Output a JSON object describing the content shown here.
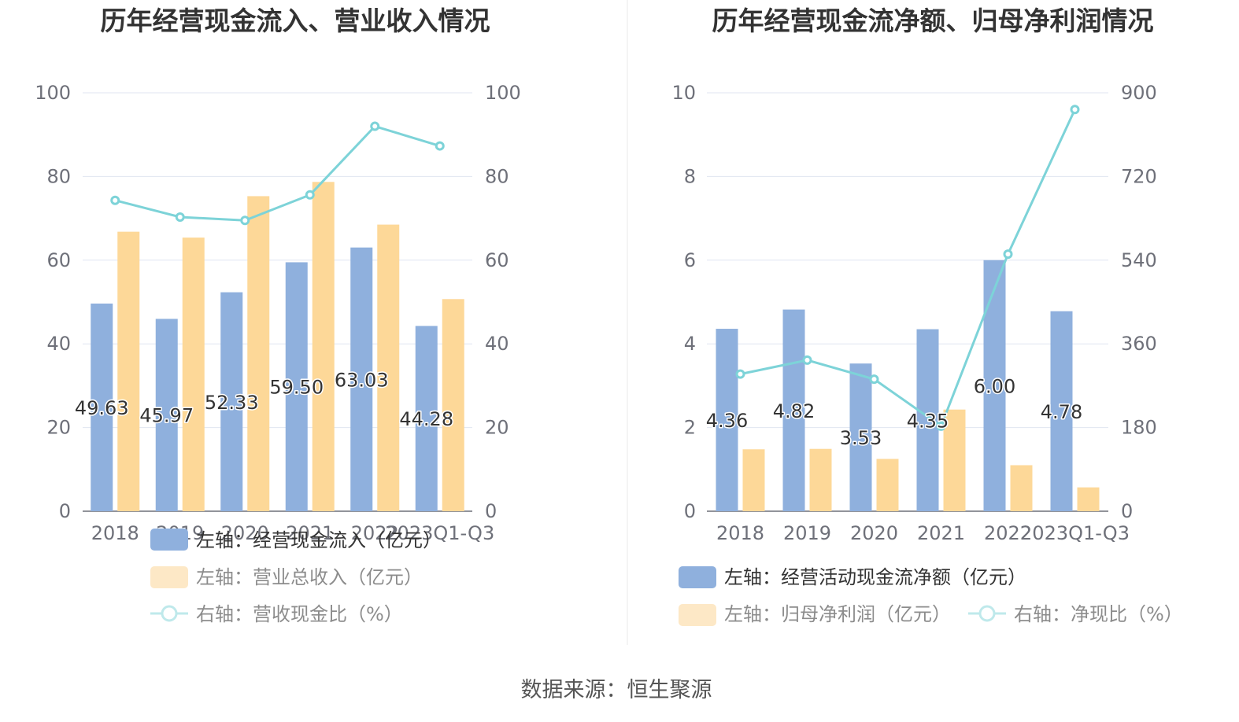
{
  "source": "数据来源：恒生聚源",
  "colors": {
    "blue": "#8fb0dd",
    "orange": "#fdd898",
    "orange_legend": "#fde8c6",
    "line": "#7dd3d8",
    "grid": "#e0e6f1",
    "axis": "#6e7079"
  },
  "chart_data": [
    {
      "type": "bar",
      "title": "历年经营现金流入、营业收入情况",
      "categories": [
        "2018",
        "2019",
        "2020",
        "2021",
        "2022",
        "2023Q1-Q3"
      ],
      "left_axis": {
        "ylim": [
          0,
          100
        ],
        "ticks": [
          "0",
          "20",
          "40",
          "60",
          "80",
          "100"
        ]
      },
      "right_axis": {
        "ylim": [
          0,
          100
        ],
        "ticks": [
          "0",
          "20",
          "40",
          "60",
          "80",
          "100"
        ]
      },
      "series": [
        {
          "name": "左轴：经营现金流入（亿元）",
          "type": "bar",
          "axis": "left",
          "values": [
            49.63,
            45.97,
            52.33,
            59.5,
            63.03,
            44.28
          ],
          "labels": [
            "49.63",
            "45.97",
            "52.33",
            "59.50",
            "63.03",
            "44.28"
          ]
        },
        {
          "name": "左轴：营业总收入（亿元）",
          "type": "bar",
          "axis": "left",
          "values": [
            66.8,
            65.4,
            75.3,
            78.7,
            68.5,
            50.7
          ]
        },
        {
          "name": "右轴：营收现金比（%）",
          "type": "line",
          "axis": "right",
          "values": [
            74.3,
            70.3,
            69.5,
            75.6,
            92.0,
            87.3
          ]
        }
      ]
    },
    {
      "type": "bar",
      "title": "历年经营现金流净额、归母净利润情况",
      "categories": [
        "2018",
        "2019",
        "2020",
        "2021",
        "2022",
        "2023Q1-Q3"
      ],
      "left_axis": {
        "ylim": [
          0,
          10
        ],
        "ticks": [
          "0",
          "2",
          "4",
          "6",
          "8",
          "10"
        ]
      },
      "right_axis": {
        "ylim": [
          0,
          900
        ],
        "ticks": [
          "0",
          "180",
          "360",
          "540",
          "720",
          "900"
        ]
      },
      "series": [
        {
          "name": "左轴：经营活动现金流净额（亿元）",
          "type": "bar",
          "axis": "left",
          "values": [
            4.36,
            4.82,
            3.53,
            4.35,
            6.0,
            4.78
          ],
          "labels": [
            "4.36",
            "4.82",
            "3.53",
            "4.35",
            "6.00",
            "4.78"
          ]
        },
        {
          "name": "左轴：归母净利润（亿元）",
          "type": "bar",
          "axis": "left",
          "values": [
            1.48,
            1.49,
            1.25,
            2.43,
            1.1,
            0.57
          ]
        },
        {
          "name": "右轴：净现比（%）",
          "type": "line",
          "axis": "right",
          "values": [
            295,
            325,
            284,
            183,
            553,
            864
          ]
        }
      ]
    }
  ]
}
